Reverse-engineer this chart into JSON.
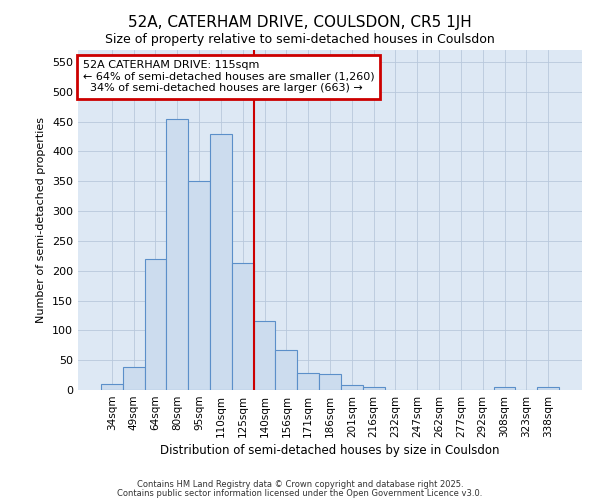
{
  "title": "52A, CATERHAM DRIVE, COULSDON, CR5 1JH",
  "subtitle": "Size of property relative to semi-detached houses in Coulsdon",
  "xlabel": "Distribution of semi-detached houses by size in Coulsdon",
  "ylabel": "Number of semi-detached properties",
  "categories": [
    "34sqm",
    "49sqm",
    "64sqm",
    "80sqm",
    "95sqm",
    "110sqm",
    "125sqm",
    "140sqm",
    "156sqm",
    "171sqm",
    "186sqm",
    "201sqm",
    "216sqm",
    "232sqm",
    "247sqm",
    "262sqm",
    "277sqm",
    "292sqm",
    "308sqm",
    "323sqm",
    "338sqm"
  ],
  "values": [
    10,
    38,
    220,
    455,
    350,
    430,
    213,
    115,
    67,
    28,
    27,
    8,
    5,
    0,
    0,
    0,
    0,
    0,
    5,
    0,
    5
  ],
  "bar_color": "#ccdcee",
  "bar_edge_color": "#5b8fc9",
  "bar_linewidth": 0.8,
  "vline_x": 6.5,
  "vline_color": "#cc0000",
  "vline_linewidth": 1.5,
  "annotation_text": "52A CATERHAM DRIVE: 115sqm\n← 64% of semi-detached houses are smaller (1,260)\n  34% of semi-detached houses are larger (663) →",
  "annotation_box_color": "#cc0000",
  "annotation_bg": "#ffffff",
  "ylim": [
    0,
    570
  ],
  "yticks": [
    0,
    50,
    100,
    150,
    200,
    250,
    300,
    350,
    400,
    450,
    500,
    550
  ],
  "grid_color": "#b8c8dc",
  "bg_color": "#dde8f4",
  "fig_bg": "#ffffff",
  "footer1": "Contains HM Land Registry data © Crown copyright and database right 2025.",
  "footer2": "Contains public sector information licensed under the Open Government Licence v3.0."
}
